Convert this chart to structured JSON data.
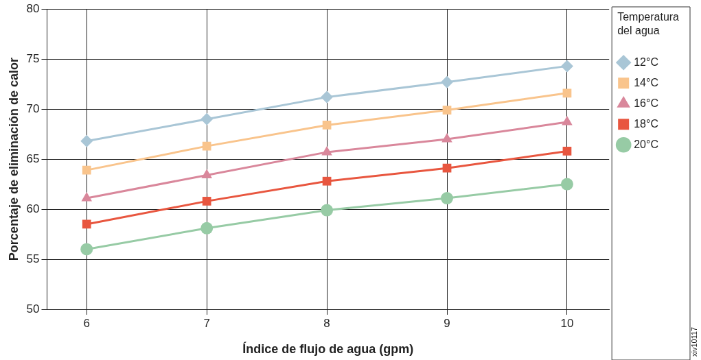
{
  "chart_data": {
    "type": "line",
    "xlabel": "Índice de flujo de agua (gpm)",
    "ylabel": "Porcentaje de eliminación de calor",
    "legend_title": "Temperatura del agua",
    "x": [
      6,
      7,
      8,
      9,
      10
    ],
    "xlim": [
      5.67,
      10.35
    ],
    "xticks": [
      6,
      7,
      8,
      9,
      10
    ],
    "ylim": [
      50,
      80
    ],
    "yticks": [
      50,
      55,
      60,
      65,
      70,
      75,
      80
    ],
    "grid": true,
    "legend": "right",
    "line_style": "solid",
    "series": [
      {
        "name": "12°C",
        "color": "#a9c6d6",
        "marker": "diamond",
        "values": [
          66.8,
          69.0,
          71.2,
          72.7,
          74.3
        ]
      },
      {
        "name": "14°C",
        "color": "#f9c48c",
        "marker": "square",
        "values": [
          63.9,
          66.3,
          68.4,
          69.9,
          71.6
        ]
      },
      {
        "name": "16°C",
        "color": "#d9879b",
        "marker": "triangle",
        "values": [
          61.1,
          63.4,
          65.7,
          67.0,
          68.7
        ]
      },
      {
        "name": "18°C",
        "color": "#e8563f",
        "marker": "square",
        "values": [
          58.5,
          60.8,
          62.8,
          64.1,
          65.8
        ]
      },
      {
        "name": "20°C",
        "color": "#97cba5",
        "marker": "circle",
        "values": [
          56.0,
          58.1,
          59.9,
          61.1,
          62.5
        ]
      }
    ],
    "annotations": [
      "xiv10117"
    ]
  }
}
